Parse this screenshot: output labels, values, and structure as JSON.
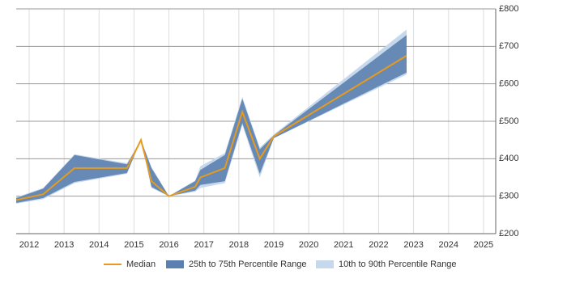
{
  "chart_data": {
    "type": "line",
    "x": [
      2011.63,
      2012.4,
      2013.3,
      2014.8,
      2015.2,
      2015.5,
      2016.0,
      2016.75,
      2016.9,
      2017.6,
      2018.1,
      2018.6,
      2019.0,
      2022.8
    ],
    "series": [
      {
        "name": "Median",
        "color": "#e69b1e",
        "values": [
          290,
          305,
          375,
          375,
          450,
          340,
          300,
          325,
          350,
          375,
          525,
          400,
          460,
          675
        ]
      },
      {
        "name": "25th to 75th Percentile Range",
        "color": "#5b7fb0",
        "low": [
          282,
          295,
          338,
          362,
          450,
          325,
          300,
          315,
          330,
          340,
          495,
          360,
          455,
          630
        ],
        "high": [
          295,
          320,
          410,
          385,
          450,
          375,
          300,
          340,
          370,
          410,
          560,
          425,
          462,
          730
        ]
      },
      {
        "name": "10th to 90th Percentile Range",
        "color": "#c6d9ec",
        "low": [
          280,
          292,
          335,
          360,
          450,
          322,
          300,
          312,
          322,
          335,
          490,
          350,
          455,
          625
        ],
        "high": [
          297,
          322,
          412,
          388,
          450,
          378,
          300,
          342,
          380,
          415,
          565,
          430,
          465,
          745
        ]
      }
    ],
    "xlim": [
      2011.63,
      2025.35
    ],
    "xticks": [
      2012,
      2013,
      2014,
      2015,
      2016,
      2017,
      2018,
      2019,
      2020,
      2021,
      2022,
      2023,
      2024,
      2025
    ],
    "ylim": [
      200,
      800
    ],
    "yticks": [
      {
        "value": 200,
        "label": "£200"
      },
      {
        "value": 300,
        "label": "£300"
      },
      {
        "value": 400,
        "label": "£400"
      },
      {
        "value": 500,
        "label": "£500"
      },
      {
        "value": 600,
        "label": "£600"
      },
      {
        "value": 700,
        "label": "£700"
      },
      {
        "value": 800,
        "label": "£800"
      }
    ],
    "grid": true,
    "legend": "bottom"
  }
}
